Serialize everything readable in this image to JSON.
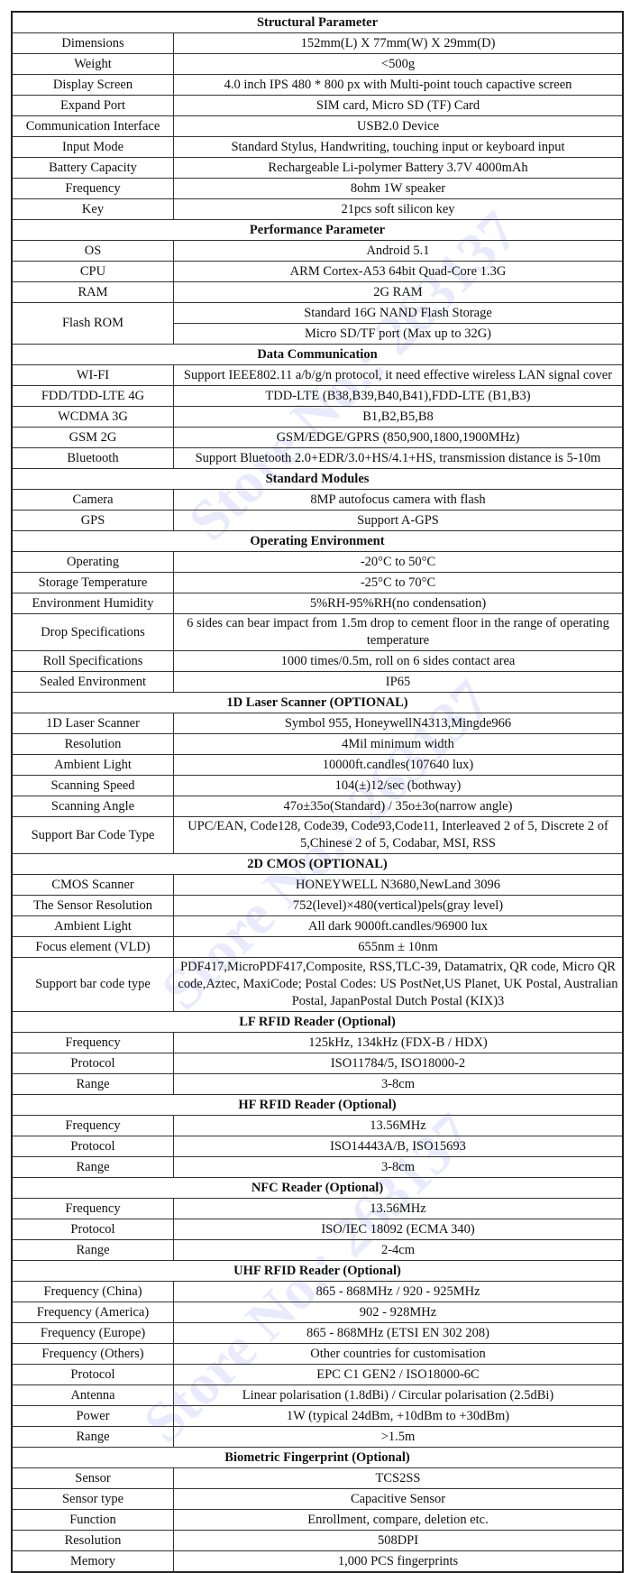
{
  "watermark": "Store No.: 263137",
  "sections": [
    {
      "title": "Structural Parameter",
      "rows": [
        [
          "Dimensions",
          "152mm(L) X 77mm(W) X 29mm(D)"
        ],
        [
          "Weight",
          "<500g"
        ],
        [
          "Display Screen",
          "4.0 inch IPS 480 * 800 px with Multi-point touch capactive screen"
        ],
        [
          "Expand Port",
          "SIM card, Micro SD (TF) Card"
        ],
        [
          "Communication Interface",
          "USB2.0 Device"
        ],
        [
          "Input Mode",
          "Standard Stylus, Handwriting, touching input or keyboard input"
        ],
        [
          "Battery Capacity",
          "Rechargeable Li-polymer Battery 3.7V 4000mAh"
        ],
        [
          "Frequency",
          "8ohm 1W speaker"
        ],
        [
          "Key",
          "21pcs soft silicon key"
        ]
      ]
    },
    {
      "title": "Performance Parameter",
      "rows": [
        [
          "OS",
          "Android 5.1"
        ],
        [
          "CPU",
          "ARM Cortex-A53 64bit Quad-Core 1.3G"
        ],
        [
          "RAM",
          "2G RAM"
        ],
        [
          "Flash ROM",
          "Standard 16G NAND Flash Storage",
          "Micro SD/TF port (Max up to 32G)"
        ]
      ]
    },
    {
      "title": "Data Communication",
      "rows": [
        [
          "WI-FI",
          "Support IEEE802.11 a/b/g/n protocol, it need effective wireless LAN signal cover"
        ],
        [
          "FDD/TDD-LTE 4G",
          "TDD-LTE (B38,B39,B40,B41),FDD-LTE (B1,B3)"
        ],
        [
          "WCDMA 3G",
          "B1,B2,B5,B8"
        ],
        [
          "GSM 2G",
          "GSM/EDGE/GPRS (850,900,1800,1900MHz)"
        ],
        [
          "Bluetooth",
          "Support Bluetooth 2.0+EDR/3.0+HS/4.1+HS, transmission distance is 5-10m"
        ]
      ]
    },
    {
      "title": "Standard Modules",
      "rows": [
        [
          "Camera",
          "8MP autofocus camera with flash"
        ],
        [
          "GPS",
          "Support A-GPS"
        ]
      ]
    },
    {
      "title": "Operating Environment",
      "rows": [
        [
          "Operating",
          "-20°C to 50°C"
        ],
        [
          "Storage Temperature",
          "-25°C to 70°C"
        ],
        [
          "Environment Humidity",
          "5%RH-95%RH(no condensation)"
        ],
        [
          "Drop Specifications",
          "6 sides can bear impact from 1.5m drop to cement floor in the range of operating temperature"
        ],
        [
          "Roll Specifications",
          "1000 times/0.5m, roll on 6 sides contact area"
        ],
        [
          "Sealed Environment",
          "IP65"
        ]
      ]
    },
    {
      "title": "1D Laser Scanner (OPTIONAL)",
      "rows": [
        [
          "1D Laser Scanner",
          "Symbol 955, HoneywellN4313,Mingde966"
        ],
        [
          "Resolution",
          "4Mil minimum width"
        ],
        [
          "Ambient Light",
          "10000ft.candles(107640 lux)"
        ],
        [
          "Scanning Speed",
          "104(±)12/sec (bothway)"
        ],
        [
          "Scanning Angle",
          "47o±35o(Standard) / 35o±3o(narrow angle)"
        ],
        [
          "Support Bar Code Type",
          "UPC/EAN, Code128, Code39, Code93,Code11, Interleaved 2 of 5, Discrete 2 of 5,Chinese 2 of 5, Codabar, MSI, RSS"
        ]
      ]
    },
    {
      "title": "2D CMOS (OPTIONAL)",
      "rows": [
        [
          "CMOS Scanner",
          "HONEYWELL N3680,NewLand 3096"
        ],
        [
          "The Sensor Resolution",
          "752(level)×480(vertical)pels(gray level)"
        ],
        [
          "Ambient Light",
          "All dark 9000ft.candles/96900 lux"
        ],
        [
          "Focus element (VLD)",
          "655nm ± 10nm"
        ],
        [
          "Support bar code type",
          "PDF417,MicroPDF417,Composite, RSS,TLC-39, Datamatrix, QR code, Micro QR code,Aztec, MaxiCode; Postal Codes: US PostNet,US Planet, UK Postal, Australian Postal, JapanPostal Dutch Postal (KIX)3"
        ]
      ]
    },
    {
      "title": "LF RFID Reader (Optional)",
      "rows": [
        [
          "Frequency",
          "125kHz, 134kHz (FDX-B / HDX)"
        ],
        [
          "Protocol",
          "ISO11784/5, ISO18000-2"
        ],
        [
          "Range",
          "3-8cm"
        ]
      ]
    },
    {
      "title": "HF RFID Reader (Optional)",
      "rows": [
        [
          "Frequency",
          "13.56MHz"
        ],
        [
          "Protocol",
          "ISO14443A/B, ISO15693"
        ],
        [
          "Range",
          "3-8cm"
        ]
      ]
    },
    {
      "title": "NFC Reader (Optional)",
      "rows": [
        [
          "Frequency",
          "13.56MHz"
        ],
        [
          "Protocol",
          "ISO/IEC 18092 (ECMA 340)"
        ],
        [
          "Range",
          "2-4cm"
        ]
      ]
    },
    {
      "title": "UHF RFID Reader (Optional)",
      "rows": [
        [
          "Frequency (China)",
          "865 - 868MHz / 920 - 925MHz"
        ],
        [
          "Frequency (America)",
          "902 - 928MHz"
        ],
        [
          "Frequency (Europe)",
          "865 - 868MHz (ETSI EN 302 208)"
        ],
        [
          "Frequency (Others)",
          "Other countries for customisation"
        ],
        [
          "Protocol",
          "EPC C1 GEN2 / ISO18000-6C"
        ],
        [
          "Antenna",
          "Linear polarisation (1.8dBi) / Circular polarisation (2.5dBi)"
        ],
        [
          "Power",
          "1W (typical 24dBm, +10dBm to +30dBm)"
        ],
        [
          "Range",
          ">1.5m"
        ]
      ]
    },
    {
      "title": "Biometric Fingerprint (Optional)",
      "rows": [
        [
          "Sensor",
          "TCS2SS"
        ],
        [
          "Sensor type",
          "Capacitive Sensor"
        ],
        [
          "Function",
          "Enrollment, compare, deletion etc."
        ],
        [
          "Resolution",
          "508DPI"
        ],
        [
          "Memory",
          "1,000 PCS fingerprints"
        ]
      ]
    }
  ]
}
